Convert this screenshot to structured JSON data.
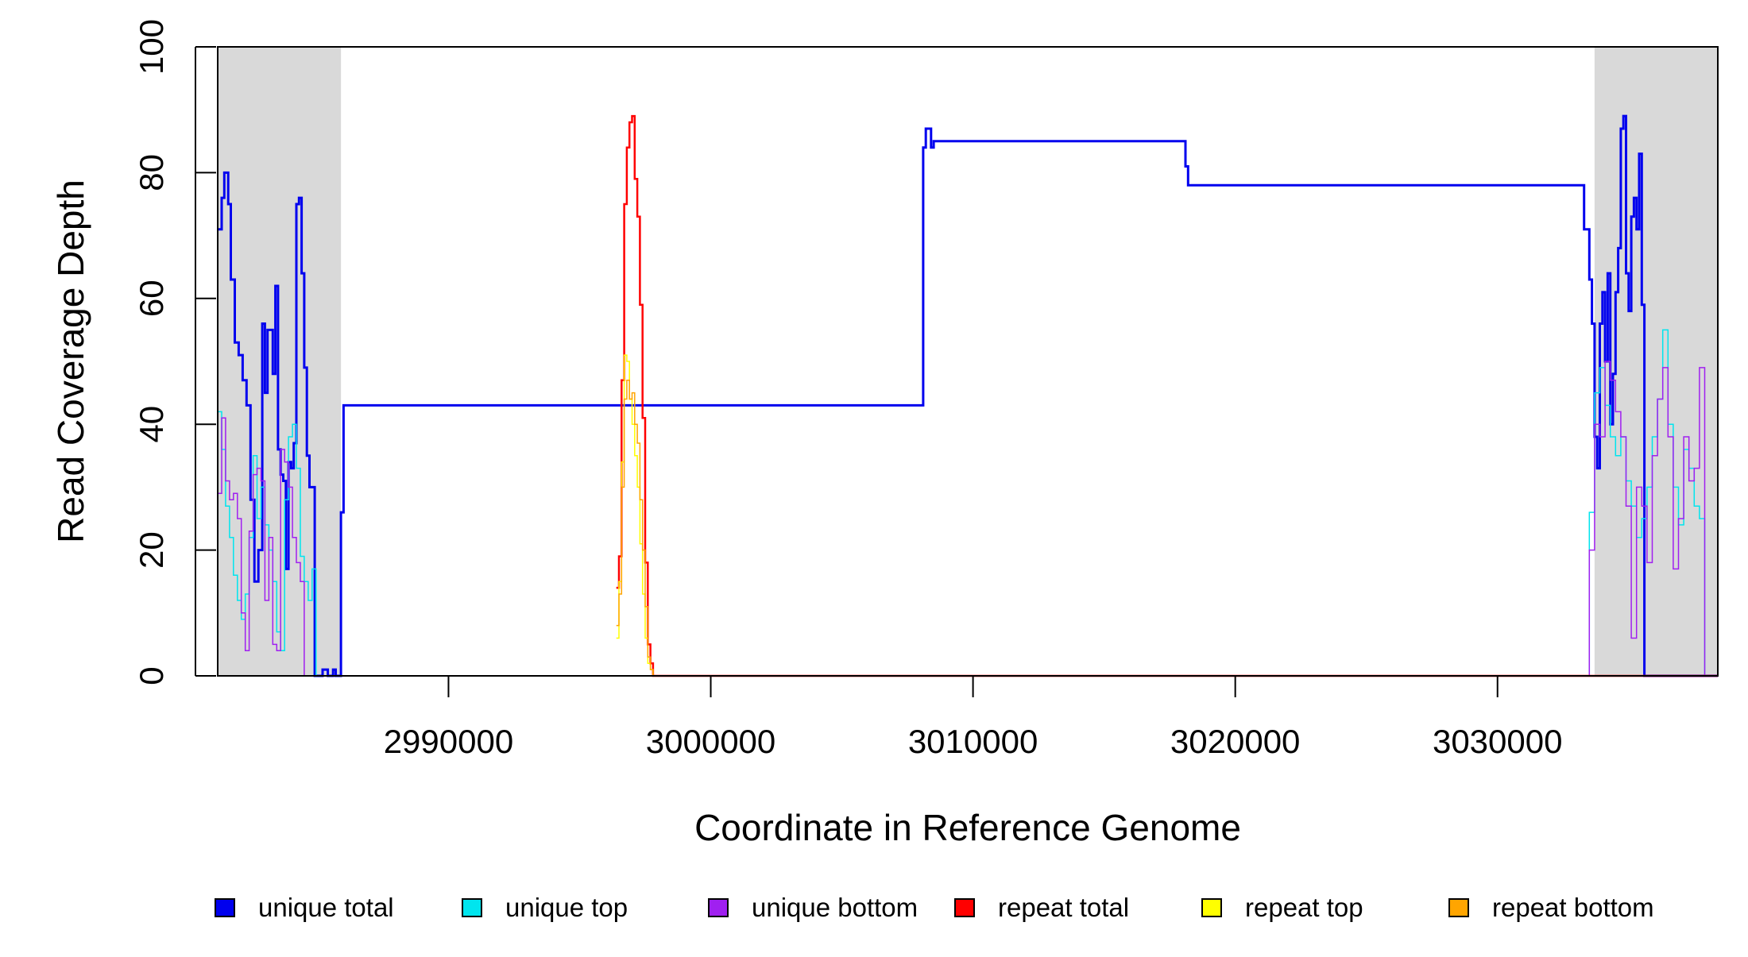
{
  "chart_data": {
    "type": "line",
    "title": "",
    "xlabel": "Coordinate in Reference Genome",
    "ylabel": "Read Coverage Depth",
    "xlim": [
      2981200,
      3038400
    ],
    "ylim": [
      0,
      100
    ],
    "x_ticks": [
      2990000,
      3000000,
      3010000,
      3020000,
      3030000
    ],
    "x_tick_labels": [
      "2990000",
      "3000000",
      "3010000",
      "3020000",
      "3030000"
    ],
    "y_ticks": [
      0,
      20,
      40,
      60,
      80,
      100
    ],
    "y_tick_labels": [
      "0",
      "20",
      "40",
      "60",
      "80",
      "100"
    ],
    "grid": false,
    "shaded_regions": [
      {
        "x": [
          2981200,
          2985900
        ],
        "color": "#d9d9d9"
      },
      {
        "x": [
          3033700,
          3038400
        ],
        "color": "#d9d9d9"
      }
    ],
    "legend_position": "bottom",
    "series": [
      {
        "name": "unique total",
        "color": "#0000ee",
        "width": 3,
        "x": [
          2981200,
          2981350,
          2981450,
          2981600,
          2981700,
          2981850,
          2982000,
          2982150,
          2982300,
          2982450,
          2982600,
          2982750,
          2982900,
          2983000,
          2983100,
          2983200,
          2983300,
          2983400,
          2983500,
          2983600,
          2983700,
          2983800,
          2983900,
          2984000,
          2984100,
          2984200,
          2984300,
          2984400,
          2984500,
          2984600,
          2984700,
          2984800,
          2984900,
          2985000,
          2985100,
          2985200,
          2985300,
          2985400,
          2985500,
          2985600,
          2985700,
          2985800,
          2985900,
          2986000,
          3008100,
          3008200,
          3008400,
          3008500,
          3018100,
          3018200,
          3033300,
          3033500,
          3033600,
          3033700,
          3033800,
          3033900,
          3034000,
          3034100,
          3034200,
          3034300,
          3034400,
          3034500,
          3034600,
          3034700,
          3034800,
          3034900,
          3035000,
          3035100,
          3035200,
          3035300,
          3035400,
          3035500,
          3035600,
          3035700,
          3035800,
          3035900,
          3036000,
          3036100,
          3036200,
          3036300,
          3036400,
          3036500,
          3036600,
          3036700,
          3036800,
          3036900,
          3037000,
          3037100,
          3037200,
          3037300,
          3037400,
          3037500,
          3037600,
          3037700,
          3037800,
          3037900,
          3038000,
          3038100,
          3038200,
          3038300,
          3038400
        ],
        "y": [
          71,
          76,
          80,
          75,
          63,
          53,
          51,
          47,
          43,
          28,
          15,
          20,
          56,
          45,
          55,
          55,
          48,
          62,
          36,
          32,
          31,
          17,
          34,
          33,
          37,
          75,
          76,
          64,
          49,
          35,
          30,
          30,
          0,
          0,
          0,
          1,
          1,
          0,
          0,
          1,
          0,
          0,
          26,
          43,
          84,
          87,
          84,
          85,
          81,
          78,
          71,
          63,
          56,
          38,
          33,
          56,
          61,
          50,
          64,
          40,
          48,
          61,
          68,
          87,
          89,
          64,
          58,
          73,
          76,
          71,
          83,
          59,
          0,
          0,
          0,
          0,
          0,
          0,
          0,
          0,
          0,
          0,
          0,
          0,
          0,
          0,
          0,
          0,
          0,
          0,
          0,
          0,
          0,
          0,
          0,
          0,
          0,
          0,
          0,
          0,
          0
        ]
      },
      {
        "name": "unique top",
        "color": "#00e5ee",
        "width": 1.5,
        "x": [
          2981200,
          2981350,
          2981500,
          2981650,
          2981800,
          2981950,
          2982100,
          2982250,
          2982400,
          2982550,
          2982700,
          2982850,
          2983000,
          2983150,
          2983300,
          2983450,
          2983600,
          2983750,
          2983900,
          2984050,
          2984200,
          2984350,
          2984500,
          2984650,
          2984800,
          2984950,
          2985100,
          2985250,
          2985400,
          2985550,
          2985700,
          2985800,
          2985900,
          2986000,
          3033300,
          3033500,
          3033700,
          3033900,
          3034100,
          3034300,
          3034500,
          3034700,
          3034900,
          3035100,
          3035300,
          3035500,
          3035700,
          3035900,
          3036100,
          3036300,
          3036500,
          3036700,
          3036900,
          3037100,
          3037300,
          3037500,
          3037700,
          3037900,
          3038100,
          3038300,
          3038400
        ],
        "y": [
          42,
          36,
          27,
          22,
          16,
          12,
          9,
          13,
          22,
          35,
          25,
          30,
          24,
          20,
          15,
          7,
          4,
          28,
          38,
          40,
          33,
          19,
          15,
          12,
          17,
          0,
          0,
          0,
          0,
          0,
          0,
          0,
          0,
          0,
          0,
          26,
          45,
          49,
          43,
          38,
          35,
          38,
          31,
          27,
          22,
          25,
          30,
          38,
          44,
          55,
          40,
          30,
          24,
          36,
          33,
          27,
          25,
          0,
          0,
          0,
          0
        ]
      },
      {
        "name": "unique bottom",
        "color": "#a020f0",
        "width": 1.5,
        "x": [
          2981200,
          2981350,
          2981500,
          2981650,
          2981800,
          2981950,
          2982100,
          2982250,
          2982400,
          2982550,
          2982700,
          2982850,
          2983000,
          2983150,
          2983300,
          2983450,
          2983600,
          2983750,
          2983900,
          2984050,
          2984200,
          2984350,
          2984500,
          2984650,
          2984800,
          2984950,
          2985100,
          2985250,
          2985400,
          2985550,
          2985700,
          2985800,
          2985900,
          2986000,
          3033300,
          3033500,
          3033700,
          3033900,
          3034100,
          3034300,
          3034500,
          3034700,
          3034900,
          3035100,
          3035300,
          3035500,
          3035700,
          3035900,
          3036100,
          3036300,
          3036500,
          3036700,
          3036900,
          3037100,
          3037300,
          3037500,
          3037700,
          3037900,
          3038100,
          3038300,
          3038400
        ],
        "y": [
          29,
          41,
          31,
          28,
          29,
          25,
          10,
          4,
          23,
          32,
          33,
          31,
          12,
          22,
          5,
          4,
          36,
          34,
          30,
          22,
          18,
          15,
          0,
          0,
          0,
          0,
          0,
          0,
          0,
          0,
          0,
          0,
          0,
          0,
          0,
          20,
          40,
          38,
          50,
          47,
          42,
          38,
          27,
          6,
          30,
          27,
          18,
          35,
          44,
          49,
          38,
          17,
          25,
          38,
          31,
          33,
          49,
          0,
          0,
          0,
          0
        ]
      },
      {
        "name": "repeat total",
        "color": "#ff0000",
        "width": 2.5,
        "x": [
          2996400,
          2996500,
          2996600,
          2996700,
          2996800,
          2996900,
          2997000,
          2997100,
          2997200,
          2997300,
          2997400,
          2997500,
          2997600,
          2997700,
          2997800
        ],
        "y": [
          14,
          19,
          47,
          75,
          84,
          88,
          89,
          79,
          73,
          59,
          41,
          18,
          5,
          2,
          0
        ]
      },
      {
        "name": "repeat top",
        "color": "#ffff00",
        "width": 1.5,
        "x": [
          2996400,
          2996500,
          2996600,
          2996700,
          2996800,
          2996900,
          2997000,
          2997100,
          2997200,
          2997300,
          2997400,
          2997500,
          2997600,
          2997700,
          2997800
        ],
        "y": [
          6,
          15,
          34,
          51,
          50,
          44,
          40,
          35,
          30,
          21,
          13,
          6,
          2,
          1,
          0
        ]
      },
      {
        "name": "repeat bottom",
        "color": "#ffa500",
        "width": 1.5,
        "x": [
          2996400,
          2996500,
          2996600,
          2996700,
          2996800,
          2996900,
          2997000,
          2997100,
          2997200,
          2997300,
          2997400,
          2997500,
          2997600,
          2997700,
          2997800
        ],
        "y": [
          8,
          13,
          30,
          44,
          47,
          44,
          45,
          40,
          37,
          28,
          20,
          11,
          3,
          1,
          0
        ]
      }
    ],
    "legend": [
      {
        "label": "unique total",
        "color": "#0000ee"
      },
      {
        "label": "unique top",
        "color": "#00e5ee"
      },
      {
        "label": "unique bottom",
        "color": "#a020f0"
      },
      {
        "label": "repeat total",
        "color": "#ff0000"
      },
      {
        "label": "repeat top",
        "color": "#ffff00"
      },
      {
        "label": "repeat bottom",
        "color": "#ffa500"
      }
    ]
  }
}
